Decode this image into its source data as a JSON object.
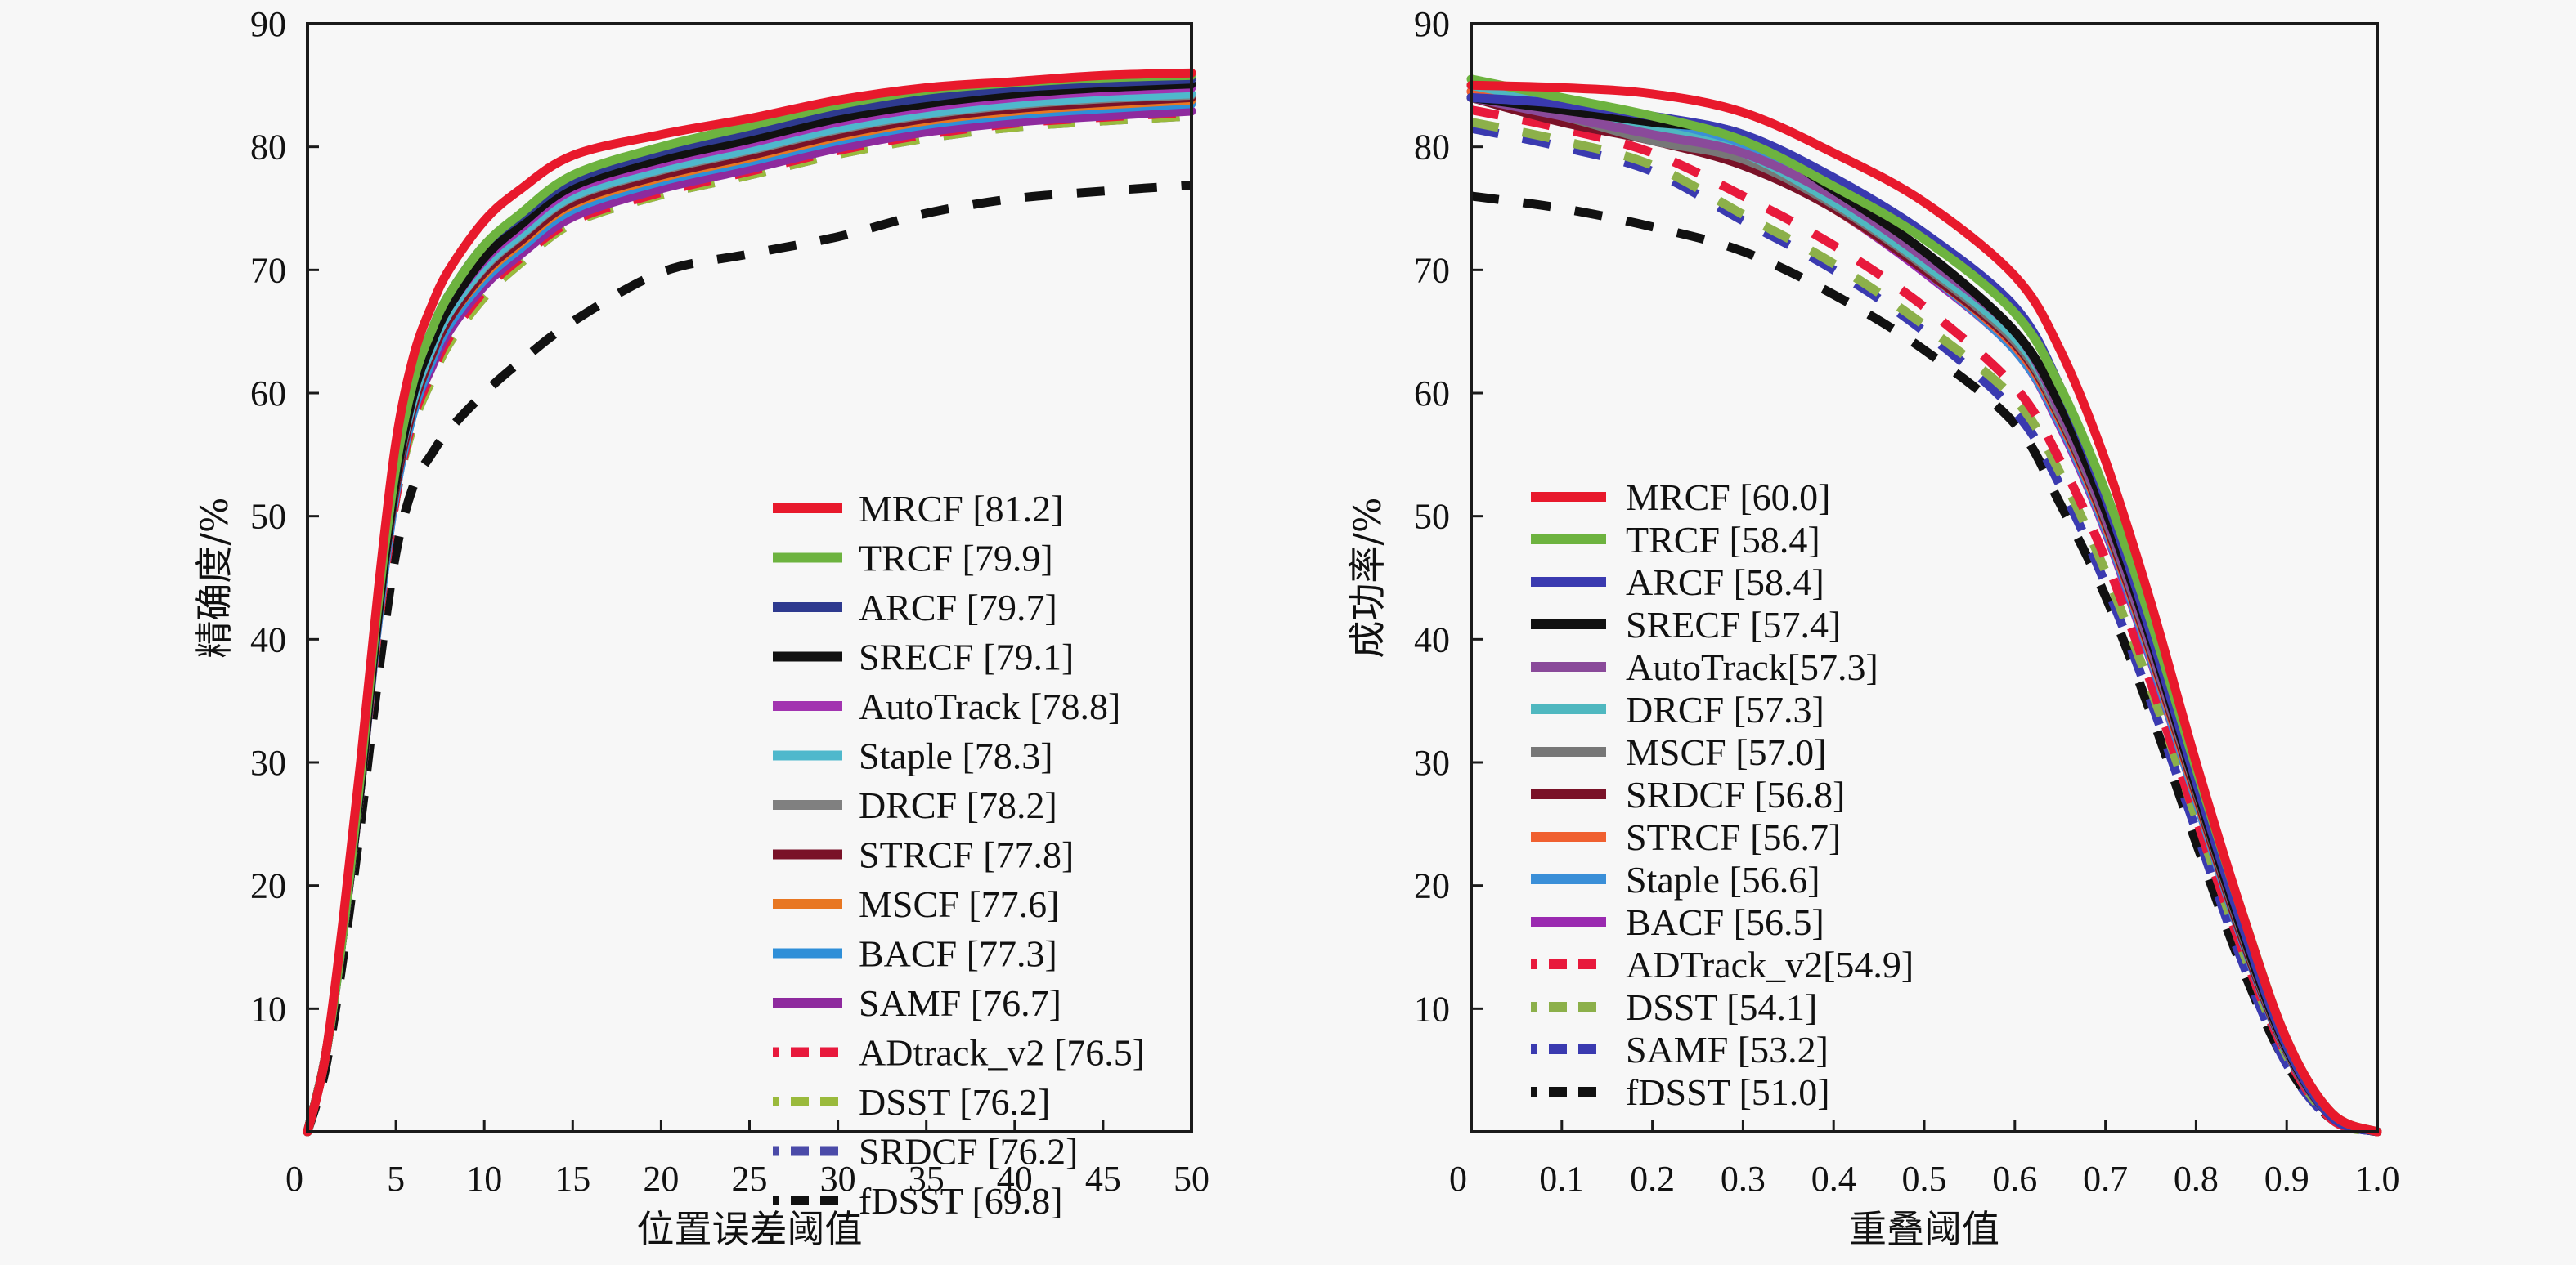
{
  "chart_data": [
    {
      "type": "line",
      "title": "",
      "xlabel": "位置误差阈值",
      "ylabel": "精确度/%",
      "xlim": [
        0,
        50
      ],
      "ylim": [
        0,
        90
      ],
      "xticks": [
        0,
        5,
        10,
        15,
        20,
        25,
        30,
        35,
        40,
        45,
        50
      ],
      "xtick_labels": [
        "0",
        "5",
        "10",
        "15",
        "20",
        "25",
        "30",
        "35",
        "40",
        "45",
        "50"
      ],
      "yticks": [
        10,
        20,
        30,
        40,
        50,
        60,
        70,
        80,
        90
      ],
      "ytick_labels": [
        "10",
        "20",
        "30",
        "40",
        "50",
        "60",
        "70",
        "80",
        "90"
      ],
      "grid": false,
      "legend_position": "bottom-right",
      "x": [
        0,
        1,
        2,
        3,
        4,
        5,
        6,
        7,
        8,
        10,
        12,
        15,
        20,
        25,
        30,
        35,
        40,
        45,
        50
      ],
      "series": [
        {
          "name": "MRCF",
          "score": "81.2",
          "legend": "MRCF [81.2]",
          "color": "#e8192c",
          "dash": "solid",
          "values": [
            0,
            6,
            17,
            30,
            44,
            56,
            63,
            67,
            70,
            74,
            76.5,
            79.3,
            81,
            82.3,
            83.8,
            84.8,
            85.3,
            85.8,
            86
          ]
        },
        {
          "name": "TRCF",
          "score": "79.9",
          "legend": "TRCF [79.9]",
          "color": "#6db33f",
          "dash": "solid",
          "values": [
            0,
            6,
            16,
            29,
            43,
            54,
            61,
            65,
            68,
            72,
            74.5,
            77.7,
            80,
            81.7,
            83.4,
            84.6,
            85.2,
            85.6,
            85.8
          ]
        },
        {
          "name": "ARCF",
          "score": "79.7",
          "legend": "ARCF [79.7]",
          "color": "#2e3a8f",
          "dash": "solid",
          "values": [
            0,
            6,
            16,
            29,
            43,
            54,
            61,
            65,
            68,
            72,
            74.3,
            77.3,
            79.6,
            81.2,
            82.9,
            84,
            84.8,
            85.2,
            85.5
          ]
        },
        {
          "name": "SRECF",
          "score": "79.1",
          "legend": "SRECF [79.1]",
          "color": "#111111",
          "dash": "solid",
          "values": [
            0,
            6,
            16,
            28,
            42,
            53,
            60,
            64,
            67,
            71,
            73.6,
            76.8,
            79,
            80.6,
            82.3,
            83.5,
            84.3,
            84.8,
            85.1
          ]
        },
        {
          "name": "AutoTrack",
          "score": "78.8",
          "legend": "AutoTrack [78.8]",
          "color": "#a234b0",
          "dash": "solid",
          "values": [
            0,
            6,
            16,
            28,
            42,
            53,
            60,
            64,
            67,
            70.8,
            73.3,
            76.5,
            78.7,
            80.3,
            82,
            83.2,
            84,
            84.5,
            84.8
          ]
        },
        {
          "name": "Staple",
          "score": "78.3",
          "legend": "Staple [78.3]",
          "color": "#4fb8cc",
          "dash": "solid",
          "values": [
            0,
            6,
            16,
            28,
            42,
            53,
            59.5,
            63.5,
            66.5,
            70.3,
            72.8,
            76,
            78.2,
            79.8,
            81.5,
            82.7,
            83.5,
            84,
            84.3
          ]
        },
        {
          "name": "DRCF",
          "score": "78.2",
          "legend": "DRCF [78.2]",
          "color": "#808080",
          "dash": "solid",
          "values": [
            0,
            6,
            16,
            28,
            42,
            53,
            59.5,
            63.5,
            66.5,
            70.2,
            72.7,
            75.9,
            78.1,
            79.7,
            81.4,
            82.6,
            83.4,
            83.9,
            84.2
          ]
        },
        {
          "name": "STRCF",
          "score": "77.8",
          "legend": "STRCF [77.8]",
          "color": "#7a1228",
          "dash": "solid",
          "values": [
            0,
            6,
            16,
            28,
            42,
            52.5,
            59,
            63,
            66,
            69.8,
            72.3,
            75.5,
            77.7,
            79.3,
            81,
            82.3,
            83.1,
            83.6,
            84
          ]
        },
        {
          "name": "MSCF",
          "score": "77.6",
          "legend": "MSCF [77.6]",
          "color": "#e87722",
          "dash": "solid",
          "values": [
            0,
            6,
            16,
            28,
            42,
            52.5,
            59,
            63,
            66,
            69.6,
            72.1,
            75.3,
            77.5,
            79.1,
            80.8,
            82.1,
            82.9,
            83.4,
            83.8
          ]
        },
        {
          "name": "BACF",
          "score": "77.3",
          "legend": "BACF [77.3]",
          "color": "#2f8fd8",
          "dash": "solid",
          "values": [
            0,
            6,
            16,
            28,
            41.5,
            52,
            58.5,
            62.5,
            65.5,
            69.2,
            71.7,
            74.9,
            77.2,
            78.8,
            80.5,
            81.8,
            82.6,
            83.1,
            83.5
          ]
        },
        {
          "name": "SAMF",
          "score": "76.7",
          "legend": "SAMF [76.7]",
          "color": "#8e2a9e",
          "dash": "solid",
          "values": [
            0,
            6,
            16,
            28,
            41.5,
            52,
            58.5,
            62,
            65,
            68.7,
            71.2,
            74.3,
            76.6,
            78.2,
            79.9,
            81.2,
            82,
            82.5,
            82.9
          ]
        },
        {
          "name": "ADtrack_v2",
          "score": "76.5",
          "legend": "ADtrack_v2 [76.5]",
          "color": "#e8193c",
          "dash": "dash",
          "values": [
            0,
            6,
            16,
            28,
            41,
            51.5,
            58,
            61.5,
            64.5,
            68.3,
            70.9,
            74,
            76.3,
            78,
            79.7,
            81,
            81.9,
            82.4,
            82.8
          ]
        },
        {
          "name": "DSST",
          "score": "76.2",
          "legend": "DSST [76.2]",
          "color": "#9aba3c",
          "dash": "dash",
          "values": [
            0,
            6,
            16,
            28,
            41,
            51.5,
            57.5,
            61,
            64,
            67.8,
            70.5,
            73.8,
            76.1,
            77.7,
            79.4,
            80.7,
            81.6,
            82.1,
            82.5
          ]
        },
        {
          "name": "SRDCF",
          "score": "76.2",
          "legend": "SRDCF [76.2]",
          "color": "#4a4aa8",
          "dash": "dash",
          "values": [
            0,
            6,
            16,
            28,
            41,
            51.5,
            57.5,
            61,
            64,
            67.8,
            70.5,
            73.8,
            76.1,
            77.7,
            79.4,
            80.7,
            81.6,
            82.1,
            82.5
          ]
        },
        {
          "name": "fDSST",
          "score": "69.8",
          "legend": "fDSST [69.8]",
          "color": "#111111",
          "dash": "dash",
          "values": [
            0,
            5,
            14,
            25,
            37,
            47,
            52.5,
            55,
            57,
            60,
            62.5,
            65.8,
            69.8,
            71.3,
            72.7,
            74.6,
            75.8,
            76.4,
            76.9
          ]
        }
      ]
    },
    {
      "type": "line",
      "title": "",
      "xlabel": "重叠阈值",
      "ylabel": "成功率/%",
      "xlim": [
        0,
        1.0
      ],
      "ylim": [
        0,
        90
      ],
      "xticks": [
        0,
        0.1,
        0.2,
        0.3,
        0.4,
        0.5,
        0.6,
        0.7,
        0.8,
        0.9,
        1.0
      ],
      "xtick_labels": [
        "0",
        "0.1",
        "0.2",
        "0.3",
        "0.4",
        "0.5",
        "0.6",
        "0.7",
        "0.8",
        "0.9",
        "1.0"
      ],
      "yticks": [
        10,
        20,
        30,
        40,
        50,
        60,
        70,
        80,
        90
      ],
      "ytick_labels": [
        "10",
        "20",
        "30",
        "40",
        "50",
        "60",
        "70",
        "80",
        "90"
      ],
      "grid": false,
      "legend_position": "bottom-left",
      "x": [
        0,
        0.1,
        0.2,
        0.3,
        0.4,
        0.5,
        0.6,
        0.65,
        0.7,
        0.75,
        0.8,
        0.85,
        0.9,
        0.95,
        1.0
      ],
      "series": [
        {
          "name": "MRCF",
          "score": "60.0",
          "legend": "MRCF [60.0]",
          "color": "#e8192c",
          "dash": "solid",
          "values": [
            85,
            84.8,
            84.3,
            82.8,
            79.5,
            75.5,
            69.5,
            63.5,
            54.5,
            43,
            30,
            18,
            7.5,
            1.5,
            0
          ]
        },
        {
          "name": "TRCF",
          "score": "58.4",
          "legend": "TRCF [58.4]",
          "color": "#6db33f",
          "dash": "solid",
          "values": [
            85.5,
            84,
            82.5,
            80.5,
            76.8,
            72.5,
            66.5,
            60.5,
            52,
            41.5,
            29.5,
            18,
            7.5,
            1.5,
            0
          ]
        },
        {
          "name": "ARCF",
          "score": "58.4",
          "legend": "ARCF [58.4]",
          "color": "#3a3ab0",
          "dash": "solid",
          "values": [
            84,
            83.5,
            82.5,
            81,
            77.5,
            73,
            67,
            60.5,
            51.5,
            40.5,
            28.5,
            17,
            7,
            1.2,
            0
          ]
        },
        {
          "name": "SRECF",
          "score": "57.4",
          "legend": "SRECF [57.4]",
          "color": "#111111",
          "dash": "solid",
          "values": [
            84,
            83,
            82,
            81,
            76.5,
            71.5,
            65,
            59,
            50.5,
            40,
            28,
            16.5,
            6.8,
            1.2,
            0
          ]
        },
        {
          "name": "AutoTrack",
          "score": "57.3",
          "legend": "AutoTrack[57.3]",
          "color": "#8a4a9a",
          "dash": "solid",
          "values": [
            84,
            82.5,
            81,
            79.5,
            76,
            71,
            65,
            58.5,
            50,
            39.5,
            28,
            16.5,
            6.8,
            1.2,
            0
          ]
        },
        {
          "name": "DRCF",
          "score": "57.3",
          "legend": "DRCF [57.3]",
          "color": "#4fb8c0",
          "dash": "solid",
          "values": [
            85,
            83.5,
            81.5,
            79.5,
            75.5,
            70.5,
            64.5,
            58.5,
            50,
            39.5,
            28,
            16.5,
            6.8,
            1.2,
            0
          ]
        },
        {
          "name": "MSCF",
          "score": "57.0",
          "legend": "MSCF [57.0]",
          "color": "#777777",
          "dash": "solid",
          "values": [
            84,
            82.5,
            80.5,
            79,
            75.3,
            70.3,
            64.2,
            58.2,
            49.8,
            39.3,
            27.8,
            16.3,
            6.7,
            1.2,
            0
          ]
        },
        {
          "name": "SRDCF",
          "score": "56.8",
          "legend": "SRDCF [56.8]",
          "color": "#7a1228",
          "dash": "solid",
          "values": [
            84,
            82,
            80.5,
            78.5,
            75,
            70,
            64,
            58,
            49.5,
            39,
            27.5,
            16,
            6.6,
            1.2,
            0
          ]
        },
        {
          "name": "STRCF",
          "score": "56.7",
          "legend": "STRCF [56.7]",
          "color": "#f06030",
          "dash": "solid",
          "values": [
            84.5,
            83,
            81,
            79,
            75,
            70,
            63.8,
            57.8,
            49.3,
            38.8,
            27.3,
            16,
            6.6,
            1.2,
            0
          ]
        },
        {
          "name": "Staple",
          "score": "56.6",
          "legend": "Staple [56.6]",
          "color": "#3a8fd8",
          "dash": "solid",
          "values": [
            85,
            83.5,
            82,
            80,
            75.5,
            70,
            63.5,
            57.5,
            49,
            38.5,
            27,
            15.8,
            6.5,
            1.2,
            0
          ]
        },
        {
          "name": "BACF",
          "score": "56.5",
          "legend": "BACF [56.5]",
          "color": "#9a2ab0",
          "dash": "solid",
          "values": [
            84.5,
            82.5,
            80.5,
            79,
            75,
            69.8,
            63.5,
            57.3,
            48.8,
            38.3,
            27,
            15.8,
            6.5,
            1.2,
            0
          ]
        },
        {
          "name": "ADTrack_v2",
          "score": "54.9",
          "legend": "ADTrack_v2[54.9]",
          "color": "#e8193c",
          "dash": "dash",
          "values": [
            83,
            81.5,
            79.5,
            76,
            72,
            67,
            60.5,
            54.5,
            46.5,
            36.5,
            25.5,
            15,
            6.2,
            1,
            0
          ]
        },
        {
          "name": "DSST",
          "score": "54.1",
          "legend": "DSST [54.1]",
          "color": "#8cb04a",
          "dash": "dash",
          "values": [
            82,
            80.5,
            78.5,
            74.5,
            70.5,
            65.5,
            59.5,
            53.5,
            45.5,
            36,
            25.5,
            15,
            6.2,
            1,
            0
          ]
        },
        {
          "name": "SAMF",
          "score": "53.2",
          "legend": "SAMF [53.2]",
          "color": "#3a3ab0",
          "dash": "dash",
          "values": [
            81.5,
            80,
            78,
            74,
            70,
            65,
            58.5,
            52.5,
            44.5,
            35,
            24.5,
            14,
            5.5,
            1,
            0
          ]
        },
        {
          "name": "fDSST",
          "score": "51.0",
          "legend": "fDSST [51.0]",
          "color": "#111111",
          "dash": "dash",
          "values": [
            76,
            75,
            73.5,
            71.5,
            68,
            63.5,
            57.5,
            51,
            43.5,
            34,
            23.5,
            13.5,
            5.5,
            1,
            0
          ]
        }
      ]
    }
  ]
}
